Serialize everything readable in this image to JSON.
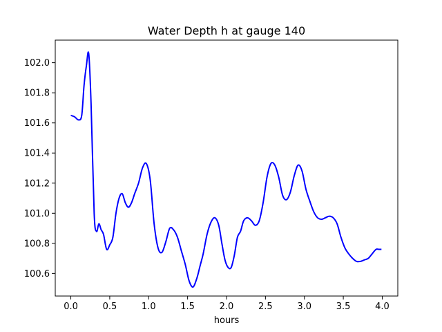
{
  "chart_data": {
    "type": "line",
    "title": "Water Depth h at gauge 140",
    "xlabel": "hours",
    "ylabel": "",
    "xlim": [
      -0.2,
      4.2
    ],
    "ylim": [
      100.45,
      102.15
    ],
    "xticks": [
      0.0,
      0.5,
      1.0,
      1.5,
      2.0,
      2.5,
      3.0,
      3.5,
      4.0
    ],
    "xtick_labels": [
      "0.0",
      "0.5",
      "1.0",
      "1.5",
      "2.0",
      "2.5",
      "3.0",
      "3.5",
      "4.0"
    ],
    "yticks": [
      100.6,
      100.8,
      101.0,
      101.2,
      101.4,
      101.6,
      101.8,
      102.0
    ],
    "ytick_labels": [
      "100.6",
      "100.8",
      "101.0",
      "101.2",
      "101.4",
      "101.6",
      "101.8",
      "102.0"
    ],
    "grid": false,
    "series": [
      {
        "color": "#0000ff",
        "x": [
          0.0,
          0.05,
          0.1,
          0.14,
          0.17,
          0.2,
          0.23,
          0.26,
          0.3,
          0.33,
          0.36,
          0.39,
          0.42,
          0.46,
          0.5,
          0.54,
          0.58,
          0.62,
          0.66,
          0.7,
          0.74,
          0.78,
          0.82,
          0.87,
          0.92,
          0.97,
          1.02,
          1.07,
          1.12,
          1.17,
          1.22,
          1.27,
          1.32,
          1.37,
          1.42,
          1.47,
          1.52,
          1.57,
          1.62,
          1.66,
          1.7,
          1.75,
          1.8,
          1.85,
          1.9,
          1.94,
          1.98,
          2.02,
          2.06,
          2.1,
          2.14,
          2.18,
          2.22,
          2.27,
          2.32,
          2.37,
          2.42,
          2.47,
          2.52,
          2.57,
          2.62,
          2.67,
          2.72,
          2.77,
          2.82,
          2.87,
          2.92,
          2.97,
          3.02,
          3.07,
          3.12,
          3.17,
          3.22,
          3.27,
          3.32,
          3.37,
          3.42,
          3.47,
          3.52,
          3.57,
          3.62,
          3.67,
          3.72,
          3.77,
          3.82,
          3.87,
          3.92,
          3.96,
          3.99
        ],
        "y": [
          101.65,
          101.64,
          101.62,
          101.65,
          101.85,
          101.98,
          102.06,
          101.73,
          101.0,
          100.88,
          100.93,
          100.89,
          100.86,
          100.76,
          100.79,
          100.84,
          101.0,
          101.1,
          101.13,
          101.07,
          101.04,
          101.07,
          101.13,
          101.2,
          101.3,
          101.33,
          101.22,
          100.93,
          100.77,
          100.74,
          100.81,
          100.9,
          100.89,
          100.84,
          100.75,
          100.66,
          100.55,
          100.51,
          100.57,
          100.65,
          100.73,
          100.86,
          100.94,
          100.97,
          100.92,
          100.8,
          100.69,
          100.64,
          100.64,
          100.72,
          100.84,
          100.88,
          100.95,
          100.97,
          100.95,
          100.92,
          100.95,
          101.07,
          101.24,
          101.33,
          101.32,
          101.24,
          101.12,
          101.09,
          101.14,
          101.25,
          101.32,
          101.28,
          101.16,
          101.08,
          101.01,
          100.97,
          100.96,
          100.97,
          100.98,
          100.97,
          100.93,
          100.84,
          100.77,
          100.73,
          100.7,
          100.68,
          100.68,
          100.69,
          100.7,
          100.73,
          100.76,
          100.76,
          100.76
        ]
      }
    ]
  }
}
